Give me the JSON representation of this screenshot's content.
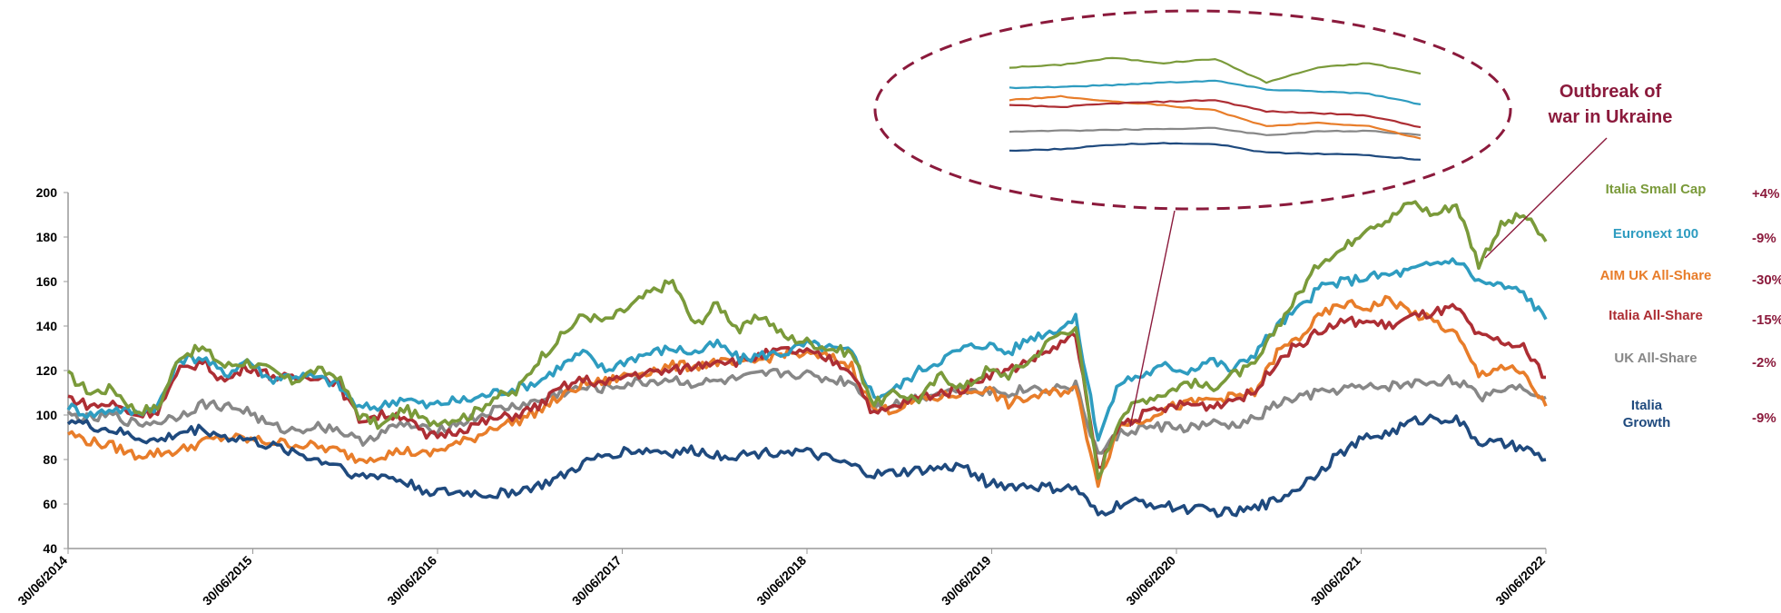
{
  "chart_data": {
    "type": "line",
    "ylim": [
      40,
      200
    ],
    "y_ticks": [
      "40",
      "60",
      "80",
      "100",
      "120",
      "140",
      "160",
      "180",
      "200"
    ],
    "x_ticks": [
      "30/06/2014",
      "30/06/2015",
      "30/06/2016",
      "30/06/2017",
      "30/06/2018",
      "30/06/2019",
      "30/06/2020",
      "30/06/2021",
      "30/06/2022"
    ],
    "grid": false,
    "legend_position": "right",
    "annotation": {
      "line1": "Outbreak of",
      "line2": "war in Ukraine",
      "color": "#8b1a3c"
    },
    "pct_color": "#8b1a3c",
    "series": [
      {
        "name": "Italia Small Cap",
        "color": "#7a9a3a",
        "change": "+4%",
        "values": [
          118,
          110,
          112,
          102,
          103,
          127,
          130,
          122,
          124,
          120,
          115,
          120,
          118,
          100,
          95,
          103,
          97,
          98,
          100,
          108,
          110,
          125,
          135,
          145,
          142,
          148,
          155,
          160,
          140,
          150,
          138,
          145,
          135,
          133,
          130,
          128,
          105,
          110,
          107,
          118,
          112,
          120,
          118,
          125,
          135,
          140,
          72,
          100,
          107,
          110,
          115,
          112,
          118,
          122,
          140,
          155,
          170,
          175,
          185,
          188,
          196,
          190,
          195,
          168,
          185,
          190,
          178
        ]
      },
      {
        "name": "Euronext 100",
        "color": "#2e9cc0",
        "change": "-9%",
        "values": [
          104,
          100,
          103,
          101,
          104,
          125,
          126,
          118,
          125,
          116,
          118,
          117,
          114,
          103,
          104,
          108,
          104,
          106,
          107,
          110,
          112,
          115,
          122,
          128,
          120,
          125,
          128,
          130,
          128,
          132,
          125,
          127,
          128,
          132,
          130,
          128,
          108,
          112,
          120,
          125,
          130,
          132,
          128,
          135,
          138,
          143,
          90,
          115,
          118,
          122,
          120,
          125,
          120,
          128,
          140,
          148,
          158,
          160,
          162,
          163,
          165,
          168,
          170,
          160,
          158,
          155,
          143
        ]
      },
      {
        "name": "AIM UK All-Share",
        "color": "#e87d2a",
        "change": "-30%",
        "values": [
          92,
          88,
          86,
          82,
          83,
          84,
          88,
          90,
          89,
          88,
          87,
          86,
          84,
          80,
          82,
          84,
          82,
          86,
          89,
          95,
          97,
          102,
          108,
          114,
          115,
          118,
          120,
          122,
          122,
          124,
          122,
          125,
          128,
          127,
          126,
          122,
          102,
          103,
          107,
          108,
          110,
          112,
          105,
          108,
          110,
          112,
          70,
          96,
          98,
          103,
          105,
          107,
          108,
          110,
          128,
          135,
          145,
          150,
          148,
          152,
          146,
          142,
          136,
          118,
          122,
          118,
          104
        ]
      },
      {
        "name": "Italia All-Share",
        "color": "#ad2e34",
        "change": "-15%",
        "values": [
          108,
          104,
          105,
          100,
          102,
          120,
          124,
          115,
          122,
          118,
          116,
          118,
          115,
          98,
          100,
          100,
          90,
          92,
          95,
          98,
          100,
          104,
          112,
          116,
          114,
          118,
          119,
          120,
          122,
          125,
          124,
          127,
          129,
          128,
          125,
          120,
          100,
          104,
          108,
          110,
          112,
          118,
          120,
          125,
          130,
          136,
          75,
          96,
          100,
          103,
          105,
          104,
          107,
          110,
          125,
          132,
          138,
          142,
          142,
          140,
          144,
          146,
          148,
          135,
          133,
          130,
          117
        ]
      },
      {
        "name": "UK All-Share",
        "color": "#878787",
        "change": "-2%",
        "values": [
          100,
          98,
          100,
          96,
          97,
          100,
          105,
          104,
          102,
          95,
          93,
          95,
          94,
          88,
          92,
          96,
          93,
          95,
          98,
          102,
          104,
          106,
          110,
          112,
          112,
          114,
          115,
          116,
          114,
          115,
          116,
          118,
          119,
          118,
          116,
          115,
          104,
          105,
          108,
          110,
          112,
          111,
          110,
          112,
          112,
          113,
          82,
          92,
          94,
          95,
          94,
          96,
          95,
          98,
          105,
          108,
          110,
          112,
          112,
          113,
          114,
          115,
          116,
          108,
          112,
          113,
          108
        ]
      },
      {
        "name": "Italia Growth",
        "color": "#1f4a7e",
        "change": "-9%",
        "values": [
          98,
          95,
          93,
          90,
          88,
          92,
          94,
          90,
          89,
          86,
          84,
          80,
          78,
          72,
          73,
          70,
          66,
          65,
          65,
          64,
          66,
          68,
          72,
          78,
          82,
          84,
          84,
          83,
          84,
          82,
          82,
          83,
          84,
          83,
          80,
          77,
          73,
          74,
          75,
          76,
          77,
          70,
          68,
          68,
          67,
          67,
          55,
          60,
          61,
          59,
          58,
          57,
          56,
          58,
          62,
          68,
          76,
          84,
          90,
          92,
          97,
          99,
          98,
          88,
          87,
          85,
          80
        ]
      }
    ]
  }
}
